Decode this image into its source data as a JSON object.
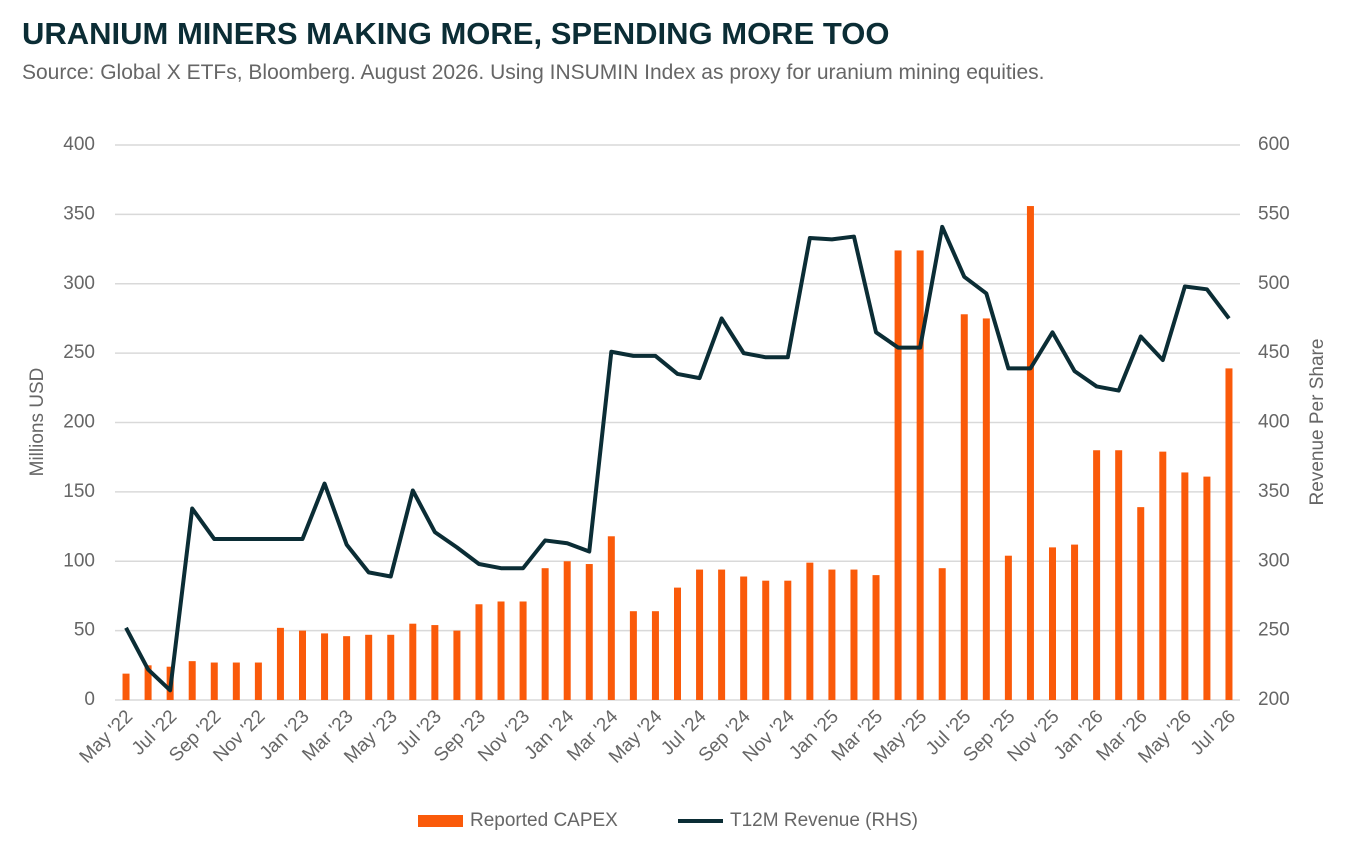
{
  "chart_data": {
    "type": "bar_line",
    "title": "URANIUM MINERS MAKING MORE, SPENDING MORE TOO",
    "subtitle": "Source: Global X ETFs, Bloomberg. August 2026. Using INSUMIN Index as proxy for uranium mining equities.",
    "ylabel": "Millions USD",
    "y2label": "Revenue Per Share",
    "categories": [
      "May '22",
      null,
      "Jul '22",
      null,
      "Sep '22",
      null,
      "Nov '22",
      null,
      "Jan '23",
      null,
      "Mar '23",
      null,
      "May '23",
      null,
      "Jul '23",
      null,
      "Sep '23",
      null,
      "Nov '23",
      null,
      "Jan '24",
      null,
      "Mar '24",
      null,
      "May '24",
      null,
      "Jul '24",
      null,
      "Sep '24",
      null,
      "Nov '24",
      null,
      "Jan '25",
      null,
      "Mar '25",
      null,
      "May '25",
      null,
      "Jul '25",
      null,
      "Sep '25",
      null,
      "Nov '25",
      null,
      "Jan '26",
      null,
      "Mar '26",
      null,
      "May '26",
      null,
      "Jul '26"
    ],
    "series": [
      {
        "name": "Reported CAPEX",
        "type": "bar",
        "axis": "y",
        "color": "#fa5a0a",
        "values": [
          19,
          25,
          24,
          28,
          27,
          27,
          27,
          52,
          50,
          48,
          46,
          47,
          47,
          55,
          54,
          50,
          69,
          71,
          71,
          95,
          100,
          98,
          118,
          64,
          64,
          81,
          94,
          94,
          89,
          86,
          86,
          99,
          94,
          94,
          90,
          324,
          324,
          95,
          278,
          275,
          104,
          356,
          110,
          112,
          180,
          180,
          139,
          179,
          164,
          161,
          239
        ]
      },
      {
        "name": "T12M Revenue (RHS)",
        "type": "line",
        "axis": "y2",
        "color": "#0b2d35",
        "values": [
          252,
          222,
          207,
          338,
          316,
          316,
          316,
          316,
          316,
          356,
          312,
          292,
          289,
          351,
          321,
          310,
          298,
          295,
          295,
          315,
          313,
          307,
          451,
          448,
          448,
          435,
          432,
          475,
          450,
          447,
          447,
          533,
          532,
          534,
          465,
          454,
          454,
          541,
          505,
          493,
          439,
          439,
          465,
          437,
          426,
          423,
          462,
          445,
          498,
          496,
          475
        ]
      }
    ],
    "ylim": [
      0,
      400
    ],
    "yticks": [
      0,
      50,
      100,
      150,
      200,
      250,
      300,
      350,
      400
    ],
    "y2lim": [
      200,
      600
    ],
    "y2ticks": [
      200,
      250,
      300,
      350,
      400,
      450,
      500,
      550,
      600
    ],
    "grid": true,
    "legend": "bottom"
  }
}
